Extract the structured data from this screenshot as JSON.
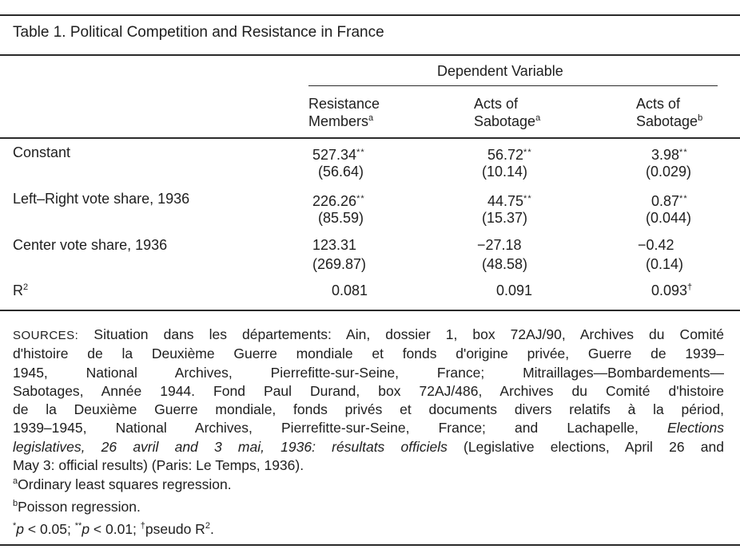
{
  "table": {
    "title": "Table 1. Political Competition and Resistance in France",
    "dependent_variable_label": "Dependent Variable",
    "columns": [
      {
        "line1": "Resistance",
        "line2": "Members",
        "note": "a"
      },
      {
        "line1": "Acts of",
        "line2": "Sabotage",
        "note": "a"
      },
      {
        "line1": "Acts of",
        "line2": "Sabotage",
        "note": "b"
      }
    ],
    "rows": [
      {
        "label": "Constant",
        "cells": [
          {
            "value": "527.34",
            "stars": "**",
            "se": "(56.64)"
          },
          {
            "value": "56.72",
            "stars": "**",
            "se": "(10.14)"
          },
          {
            "value": "3.98",
            "stars": "**",
            "se": "(0.029)"
          }
        ]
      },
      {
        "label": "Left–Right vote share, 1936",
        "cells": [
          {
            "value": "226.26",
            "stars": "**",
            "se": "(85.59)"
          },
          {
            "value": "44.75",
            "stars": "**",
            "se": "(15.37)"
          },
          {
            "value": "0.87",
            "stars": "**",
            "se": "(0.044)"
          }
        ]
      },
      {
        "label": "Center vote share, 1936",
        "cells": [
          {
            "value": "123.31",
            "stars": "",
            "se": "(269.87)"
          },
          {
            "value": "−27.18",
            "stars": "",
            "se": "(48.58)"
          },
          {
            "value": "−0.42",
            "stars": "",
            "se": "(0.14)"
          }
        ]
      }
    ],
    "r2": {
      "label_base": "R",
      "label_sup": "2",
      "values": [
        "0.081",
        "0.091",
        "0.093"
      ],
      "last_mark": "†"
    }
  },
  "notes": {
    "sources_label": "SOURCES:",
    "sources_lines": [
      " Situation dans les départements: Ain, dossier 1, box 72AJ/90, Archives du Comité",
      "d'histoire de la Deuxième Guerre mondiale et fonds d'origine privée, Guerre de 1939–",
      "1945, National Archives, Pierrefitte-sur-Seine, France; Mitraillages—Bombardements—",
      "Sabotages, Année 1944. Fond Paul Durand, box 72AJ/486, Archives du Comité d'histoire",
      "de la Deuxième Guerre mondiale, fonds privés et documents divers relatifs à la périod,",
      "1939–1945, National Archives, Pierrefitte-sur-Seine, France; and Lachapelle, "
    ],
    "sources_italic_1": "Elections",
    "sources_italic_2": "legislatives, 26 avril and 3 mai, 1936: résultats officiels",
    "sources_line7_rest": " (Legislative elections, April 26 and",
    "sources_line8": "May 3: official results) (Paris: Le Temps, 1936).",
    "footnote_a_mark": "a",
    "footnote_a_text": "Ordinary least squares regression.",
    "footnote_b_mark": "b",
    "footnote_b_text": "Poisson regression.",
    "sig_star1": "*",
    "sig_p1": "p",
    "sig_text1": " < 0.05; ",
    "sig_star2": "**",
    "sig_p2": "p",
    "sig_text2": " < 0.01; ",
    "sig_dagger": "†",
    "sig_text3": "pseudo R",
    "sig_sup": "2",
    "sig_end": "."
  }
}
